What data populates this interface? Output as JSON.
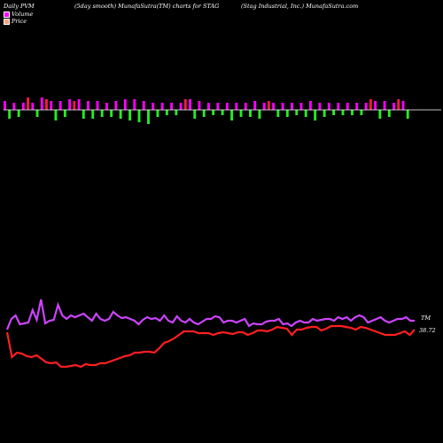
{
  "header": {
    "left": "Daily PVM",
    "middle": "(5day smooth) MunafaSutra(TM) charts for STAG",
    "right": "(Stag Industrial, Inc.) MunafaSutra.com"
  },
  "legend": [
    {
      "label": "Volume",
      "color": "#ff00ff"
    },
    {
      "label": "Price",
      "color": "#ffa07a"
    }
  ],
  "colors": {
    "background": "#000000",
    "volume_up": "#ff00ff",
    "volume_red": "#ff1744",
    "volume_down": "#22ee22",
    "pvm_line": "#cc44ff",
    "price_line": "#ff2020",
    "baseline": "#ffffff"
  },
  "chart_data": {
    "type": "line",
    "end_labels": {
      "pvm": "TM",
      "price": "38.72"
    },
    "volume_bars": [
      {
        "dir": "up",
        "h": 5
      },
      {
        "dir": "down",
        "h": 5
      },
      {
        "dir": "up",
        "h": 4
      },
      {
        "dir": "down",
        "h": 4
      },
      {
        "dir": "up",
        "h": 4
      },
      {
        "dir": "red",
        "h": 7
      },
      {
        "dir": "up",
        "h": 4
      },
      {
        "dir": "down",
        "h": 4
      },
      {
        "dir": "up",
        "h": 7
      },
      {
        "dir": "red",
        "h": 6
      },
      {
        "dir": "up",
        "h": 5
      },
      {
        "dir": "down",
        "h": 6
      },
      {
        "dir": "up",
        "h": 5
      },
      {
        "dir": "down",
        "h": 4
      },
      {
        "dir": "up",
        "h": 6
      },
      {
        "dir": "red",
        "h": 5
      },
      {
        "dir": "up",
        "h": 6
      },
      {
        "dir": "down",
        "h": 5
      },
      {
        "dir": "up",
        "h": 5
      },
      {
        "dir": "down",
        "h": 5
      },
      {
        "dir": "up",
        "h": 5
      },
      {
        "dir": "down",
        "h": 4
      },
      {
        "dir": "up",
        "h": 4
      },
      {
        "dir": "down",
        "h": 4
      },
      {
        "dir": "up",
        "h": 5
      },
      {
        "dir": "down",
        "h": 5
      },
      {
        "dir": "up",
        "h": 6
      },
      {
        "dir": "down",
        "h": 6
      },
      {
        "dir": "up",
        "h": 6
      },
      {
        "dir": "down",
        "h": 7
      },
      {
        "dir": "up",
        "h": 5
      },
      {
        "dir": "down",
        "h": 8
      },
      {
        "dir": "up",
        "h": 4
      },
      {
        "dir": "down",
        "h": 4
      },
      {
        "dir": "up",
        "h": 4
      },
      {
        "dir": "down",
        "h": 3
      },
      {
        "dir": "up",
        "h": 4
      },
      {
        "dir": "down",
        "h": 3
      },
      {
        "dir": "up",
        "h": 4
      },
      {
        "dir": "red",
        "h": 6
      },
      {
        "dir": "up",
        "h": 6
      },
      {
        "dir": "down",
        "h": 5
      },
      {
        "dir": "up",
        "h": 5
      },
      {
        "dir": "down",
        "h": 4
      },
      {
        "dir": "up",
        "h": 4
      },
      {
        "dir": "down",
        "h": 3
      },
      {
        "dir": "up",
        "h": 4
      },
      {
        "dir": "down",
        "h": 3
      },
      {
        "dir": "up",
        "h": 4
      },
      {
        "dir": "down",
        "h": 6
      },
      {
        "dir": "up",
        "h": 4
      },
      {
        "dir": "down",
        "h": 4
      },
      {
        "dir": "up",
        "h": 4
      },
      {
        "dir": "down",
        "h": 4
      },
      {
        "dir": "up",
        "h": 5
      },
      {
        "dir": "down",
        "h": 5
      },
      {
        "dir": "up",
        "h": 4
      },
      {
        "dir": "red",
        "h": 5
      },
      {
        "dir": "up",
        "h": 4
      },
      {
        "dir": "down",
        "h": 4
      },
      {
        "dir": "up",
        "h": 4
      },
      {
        "dir": "down",
        "h": 4
      },
      {
        "dir": "up",
        "h": 4
      },
      {
        "dir": "down",
        "h": 3
      },
      {
        "dir": "up",
        "h": 4
      },
      {
        "dir": "down",
        "h": 4
      },
      {
        "dir": "up",
        "h": 5
      },
      {
        "dir": "down",
        "h": 6
      },
      {
        "dir": "up",
        "h": 4
      },
      {
        "dir": "down",
        "h": 4
      },
      {
        "dir": "up",
        "h": 4
      },
      {
        "dir": "down",
        "h": 3
      },
      {
        "dir": "up",
        "h": 4
      },
      {
        "dir": "down",
        "h": 3
      },
      {
        "dir": "up",
        "h": 4
      },
      {
        "dir": "down",
        "h": 3
      },
      {
        "dir": "up",
        "h": 4
      },
      {
        "dir": "down",
        "h": 3
      },
      {
        "dir": "up",
        "h": 4
      },
      {
        "dir": "red",
        "h": 6
      },
      {
        "dir": "up",
        "h": 5
      },
      {
        "dir": "down",
        "h": 5
      },
      {
        "dir": "up",
        "h": 5
      },
      {
        "dir": "down",
        "h": 4
      },
      {
        "dir": "up",
        "h": 4
      },
      {
        "dir": "red",
        "h": 6
      },
      {
        "dir": "up",
        "h": 5
      },
      {
        "dir": "down",
        "h": 5
      }
    ],
    "pvm_series": [
      372,
      360,
      356,
      366,
      365,
      364,
      350,
      361,
      338,
      365,
      362,
      361,
      344,
      356,
      360,
      356,
      358,
      356,
      354,
      358,
      362,
      354,
      360,
      362,
      360,
      352,
      356,
      359,
      358,
      360,
      362,
      366,
      361,
      358,
      360,
      359,
      362,
      356,
      362,
      364,
      357,
      362,
      364,
      360,
      364,
      366,
      363,
      360,
      360,
      357,
      358,
      364,
      362,
      362,
      364,
      362,
      360,
      368,
      365,
      366,
      366,
      363,
      362,
      362,
      360,
      366,
      365,
      368,
      364,
      362,
      364,
      364,
      360,
      362,
      361,
      360,
      360,
      362,
      358,
      360,
      358,
      362,
      358,
      356,
      358,
      364,
      362,
      360,
      358,
      362,
      364,
      362,
      360,
      360,
      358,
      362,
      362
    ],
    "price_series": [
      375,
      403,
      398,
      399,
      402,
      403,
      401,
      405,
      409,
      410,
      409,
      414,
      414,
      413,
      412,
      414,
      411,
      412,
      412,
      410,
      410,
      408,
      406,
      404,
      402,
      401,
      398,
      398,
      397,
      397,
      398,
      393,
      387,
      385,
      382,
      378,
      374,
      374,
      374,
      376,
      376,
      376,
      378,
      376,
      375,
      376,
      377,
      375,
      375,
      378,
      376,
      373,
      373,
      374,
      372,
      369,
      370,
      371,
      378,
      372,
      372,
      370,
      369,
      369,
      373,
      371,
      368,
      368,
      368,
      369,
      370,
      372,
      369,
      370,
      372,
      374,
      376,
      378,
      378,
      378,
      376,
      374,
      378,
      372
    ]
  }
}
